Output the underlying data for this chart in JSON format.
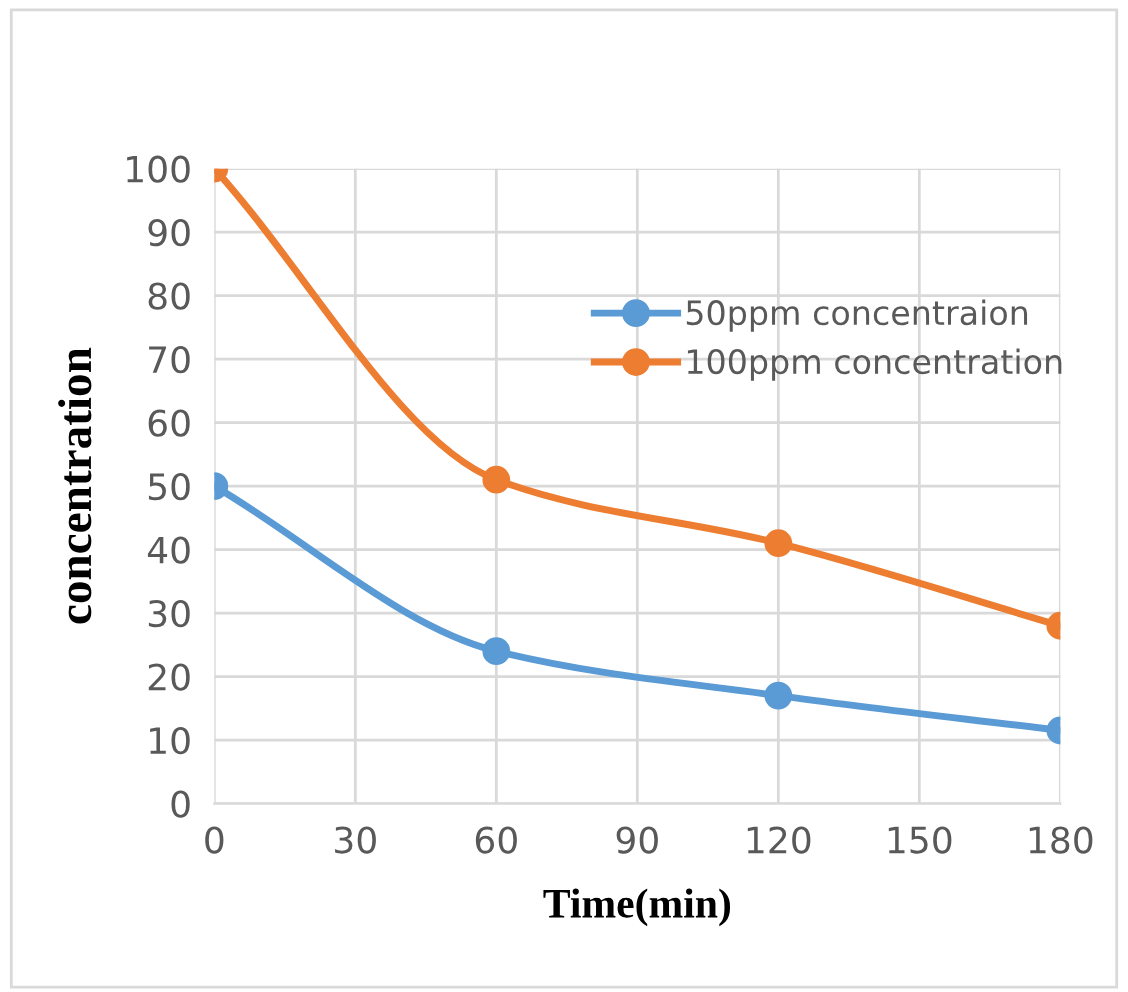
{
  "chart_data": {
    "type": "line",
    "xlabel": "Time(min)",
    "ylabel": "concentration",
    "x": [
      0,
      60,
      120,
      180
    ],
    "series": [
      {
        "name": "50ppm concentraion",
        "color": "#5b9bd5",
        "values": [
          50,
          24,
          17,
          11.5
        ]
      },
      {
        "name": "100ppm concentration",
        "color": "#ed7d31",
        "values": [
          100,
          51,
          41,
          28
        ]
      }
    ],
    "xlim": [
      0,
      180
    ],
    "xticks": [
      0,
      30,
      60,
      90,
      120,
      150,
      180
    ],
    "ylim": [
      0,
      100
    ],
    "yticks": [
      0,
      10,
      20,
      30,
      40,
      50,
      60,
      70,
      80,
      90,
      100
    ],
    "grid": true,
    "legend": "right",
    "marker": "circle",
    "line_style": "solid"
  }
}
